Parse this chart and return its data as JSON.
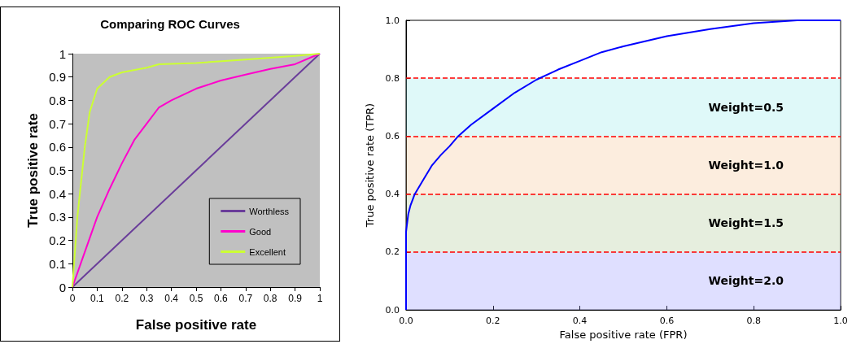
{
  "chart_data": [
    {
      "type": "line",
      "title": "Comparing ROC Curves",
      "xlabel": "False positive rate",
      "ylabel": "True positive rate",
      "xlim": [
        0,
        1
      ],
      "ylim": [
        0,
        1
      ],
      "xticks": [
        0,
        0.1,
        0.2,
        0.3,
        0.4,
        0.5,
        0.6,
        0.7,
        0.8,
        0.9,
        1
      ],
      "yticks": [
        0,
        0.1,
        0.2,
        0.3,
        0.4,
        0.5,
        0.6,
        0.7,
        0.8,
        0.9,
        1
      ],
      "grid": false,
      "legend": "bottom right",
      "marker": "none",
      "series": [
        {
          "name": "Worthless",
          "color": "#6a3d9a",
          "x": [
            0,
            0.5,
            1
          ],
          "values": [
            0,
            0.5,
            1
          ]
        },
        {
          "name": "Good",
          "color": "#ff00cc",
          "x": [
            0,
            0.05,
            0.1,
            0.15,
            0.2,
            0.25,
            0.3,
            0.35,
            0.4,
            0.5,
            0.6,
            0.7,
            0.8,
            0.9,
            1
          ],
          "values": [
            0,
            0.15,
            0.3,
            0.42,
            0.53,
            0.63,
            0.7,
            0.77,
            0.8,
            0.85,
            0.885,
            0.91,
            0.935,
            0.955,
            1
          ]
        },
        {
          "name": "Excellent",
          "color": "#ccff33",
          "x": [
            0,
            0.02,
            0.05,
            0.07,
            0.1,
            0.15,
            0.2,
            0.3,
            0.35,
            0.5,
            0.7,
            0.9,
            1
          ],
          "values": [
            0,
            0.3,
            0.6,
            0.75,
            0.85,
            0.9,
            0.92,
            0.94,
            0.955,
            0.96,
            0.975,
            0.99,
            1
          ]
        }
      ]
    },
    {
      "type": "line",
      "xlabel": "False positive rate (FPR)",
      "ylabel": "True positive rate (TPR)",
      "xlim": [
        0,
        1
      ],
      "ylim": [
        0,
        1
      ],
      "xticks": [
        {
          "value": 0,
          "label": "0.0"
        },
        0.2,
        0.4,
        0.6,
        0.8,
        {
          "value": 1,
          "label": "1.0"
        }
      ],
      "yticks": [
        {
          "value": 0,
          "label": "0.0"
        },
        0.2,
        0.4,
        0.6,
        0.8,
        {
          "value": 1,
          "label": "1.0"
        }
      ],
      "grid": false,
      "legend": false,
      "marker": "none",
      "series": [
        {
          "color": "#0000ff",
          "x": [
            0,
            0,
            0.005,
            0.01,
            0.02,
            0.04,
            0.06,
            0.08,
            0.1,
            0.12,
            0.15,
            0.2,
            0.25,
            0.3,
            0.35,
            0.4,
            0.45,
            0.5,
            0.6,
            0.7,
            0.8,
            0.9,
            1
          ],
          "values": [
            0,
            0.27,
            0.33,
            0.36,
            0.4,
            0.45,
            0.5,
            0.535,
            0.565,
            0.6,
            0.64,
            0.695,
            0.75,
            0.795,
            0.83,
            0.86,
            0.89,
            0.91,
            0.945,
            0.97,
            0.99,
            1,
            1
          ]
        }
      ],
      "ref_lines": [
        {
          "axis": "y",
          "value": 0.2,
          "color": "#ff0000",
          "line_style": "dashed"
        },
        {
          "axis": "y",
          "value": 0.4,
          "color": "#ff0000",
          "line_style": "dashed"
        },
        {
          "axis": "y",
          "value": 0.6,
          "color": "#ff0000",
          "line_style": "dashed"
        },
        {
          "axis": "y",
          "value": 0.8,
          "color": "#ff0000",
          "line_style": "dashed"
        }
      ],
      "bands": [
        {
          "axis": "y",
          "from": 0,
          "to": 0.2,
          "label": "Weight=2.0",
          "color": "#8080ff"
        },
        {
          "axis": "y",
          "from": 0.2,
          "to": 0.4,
          "label": "Weight=1.5",
          "color": "#9bbb7a"
        },
        {
          "axis": "y",
          "from": 0.4,
          "to": 0.6,
          "label": "Weight=1.0",
          "color": "#f5b87a"
        },
        {
          "axis": "y",
          "from": 0.6,
          "to": 0.8,
          "label": "Weight=0.5",
          "color": "#80e8e8"
        }
      ]
    }
  ]
}
